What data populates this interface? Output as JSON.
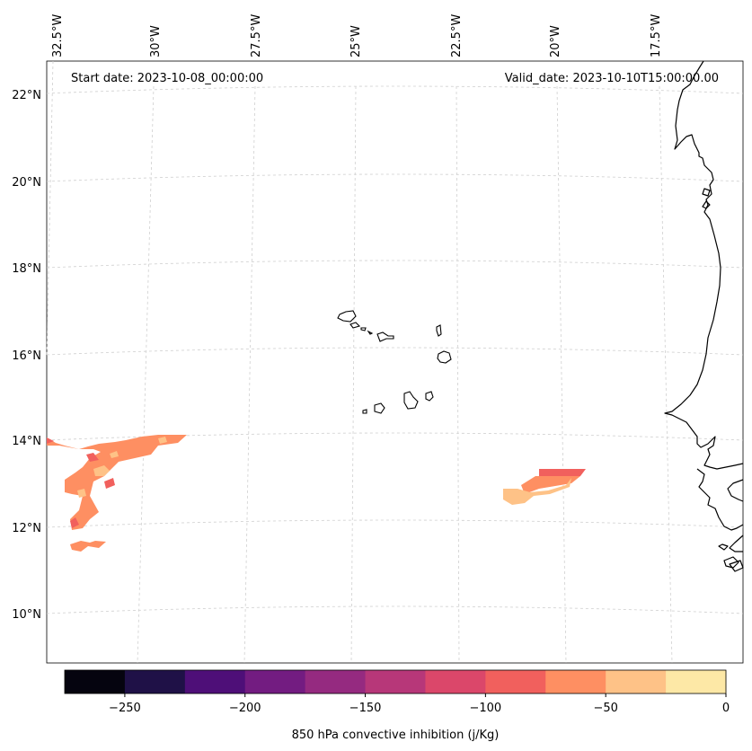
{
  "map": {
    "start_date": "Start date: 2023-10-08_00:00:00",
    "valid_date": "Valid_date: 2023-10-10T15:00:00.00",
    "top_lon_labels": [
      "32.5°W",
      "30°W",
      "27.5°W",
      "25°W",
      "22.5°W",
      "20°W",
      "17.5°W"
    ],
    "left_lat_labels": [
      "22°N",
      "20°N",
      "18°N",
      "16°N",
      "14°N",
      "12°N",
      "10°N"
    ],
    "features": [
      "cabo-verde-islands",
      "west-africa-coastline"
    ]
  },
  "colorbar": {
    "label": "850 hPa convective inhibition (j/Kg)",
    "tick_labels": [
      "−250",
      "−200",
      "−150",
      "−100",
      "−50",
      "0"
    ],
    "range": [
      -275,
      0
    ],
    "levels": [
      -275,
      -250,
      -225,
      -200,
      -175,
      -150,
      -125,
      -100,
      -75,
      -50,
      -25,
      0
    ],
    "colors": [
      "#05040f",
      "#1f1147",
      "#4e0f78",
      "#731c81",
      "#952a80",
      "#b73779",
      "#db476a",
      "#f1605d",
      "#fe8f62",
      "#fec287",
      "#fde8a6"
    ]
  },
  "chart_data": {
    "type": "heatmap",
    "title": "",
    "variable": "850 hPa convective inhibition",
    "units": "j/Kg",
    "xlabel": "",
    "ylabel": "",
    "lon_range": [
      -33,
      -15
    ],
    "lat_range": [
      9,
      22.5
    ],
    "regions": [
      {
        "name": "western patch",
        "lon": [
          -33,
          -29
        ],
        "lat": [
          11.5,
          14
        ],
        "values": [
          -75,
          -50,
          -25
        ]
      },
      {
        "name": "eastern patch",
        "lon": [
          -21,
          -18.5
        ],
        "lat": [
          12.5,
          13.3
        ],
        "values": [
          -75,
          -50,
          -25
        ]
      }
    ]
  }
}
